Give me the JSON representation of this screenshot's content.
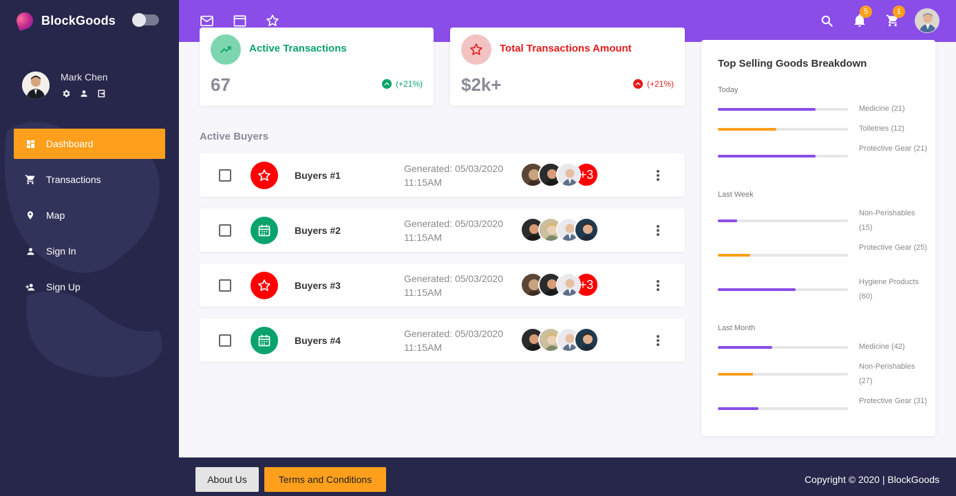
{
  "brand": {
    "name": "BlockGoods"
  },
  "user": {
    "name": "Mark Chen"
  },
  "nav": [
    {
      "label": "Dashboard",
      "icon": "dashboard-icon",
      "active": true
    },
    {
      "label": "Transactions",
      "icon": "cart-icon"
    },
    {
      "label": "Map",
      "icon": "map-pin-icon"
    },
    {
      "label": "Sign In",
      "icon": "person-icon"
    },
    {
      "label": "Sign Up",
      "icon": "person-add-icon"
    }
  ],
  "topbar": {
    "notifications_count": "5",
    "cart_count": "1"
  },
  "stats": {
    "active": {
      "title": "Active Transactions",
      "value": "67",
      "change": "(+21%)",
      "color": "#0aa36b"
    },
    "total": {
      "title": "Total Transactions Amount",
      "value": "$2k+",
      "change": "(+21%)",
      "color": "#e31b1b"
    }
  },
  "buyers": {
    "section_title": "Active Buyers",
    "rows": [
      {
        "name": "Buyers #1",
        "generated": "Generated: 05/03/2020 11:15AM",
        "icon": "star-icon",
        "more": "+3"
      },
      {
        "name": "Buyers #2",
        "generated": "Generated: 05/03/2020 11:15AM",
        "icon": "calendar-icon",
        "more": ""
      },
      {
        "name": "Buyers #3",
        "generated": "Generated: 05/03/2020 11:15AM",
        "icon": "star-icon",
        "more": "+3"
      },
      {
        "name": "Buyers #4",
        "generated": "Generated: 05/03/2020 11:15AM",
        "icon": "calendar-icon",
        "more": ""
      }
    ]
  },
  "breakdown": {
    "title": "Top Selling Goods Breakdown",
    "groups": [
      {
        "period": "Today",
        "items": [
          {
            "label": "Medicine (21)",
            "fraction": 0.75,
            "color": "#8a4de8"
          },
          {
            "label": "Toiletries (12)",
            "fraction": 0.45,
            "color": "#ff9f1c"
          },
          {
            "label": "Protective Gear (21)",
            "fraction": 0.75,
            "color": "#8a4de8"
          }
        ]
      },
      {
        "period": "Last Week",
        "items": [
          {
            "label": "Non-Perishables (15)",
            "fraction": 0.15,
            "color": "#8a4de8"
          },
          {
            "label": "Protective Gear (25)",
            "fraction": 0.25,
            "color": "#ff9f1c"
          },
          {
            "label": "Hygiene Products (60)",
            "fraction": 0.6,
            "color": "#8a4de8"
          }
        ]
      },
      {
        "period": "Last Month",
        "items": [
          {
            "label": "Medicine (42)",
            "fraction": 0.42,
            "color": "#8a4de8"
          },
          {
            "label": "Non-Perishables (27)",
            "fraction": 0.27,
            "color": "#ff9f1c"
          },
          {
            "label": "Protective Gear (31)",
            "fraction": 0.31,
            "color": "#8a4de8"
          }
        ]
      }
    ]
  },
  "footer": {
    "about": "About Us",
    "terms": "Terms and Conditions",
    "copyright": "Copyright © 2020 | BlockGoods"
  },
  "colors": {
    "primary": "#8a4de8",
    "accent": "#ff9f1c",
    "sidebar": "#26274a"
  }
}
